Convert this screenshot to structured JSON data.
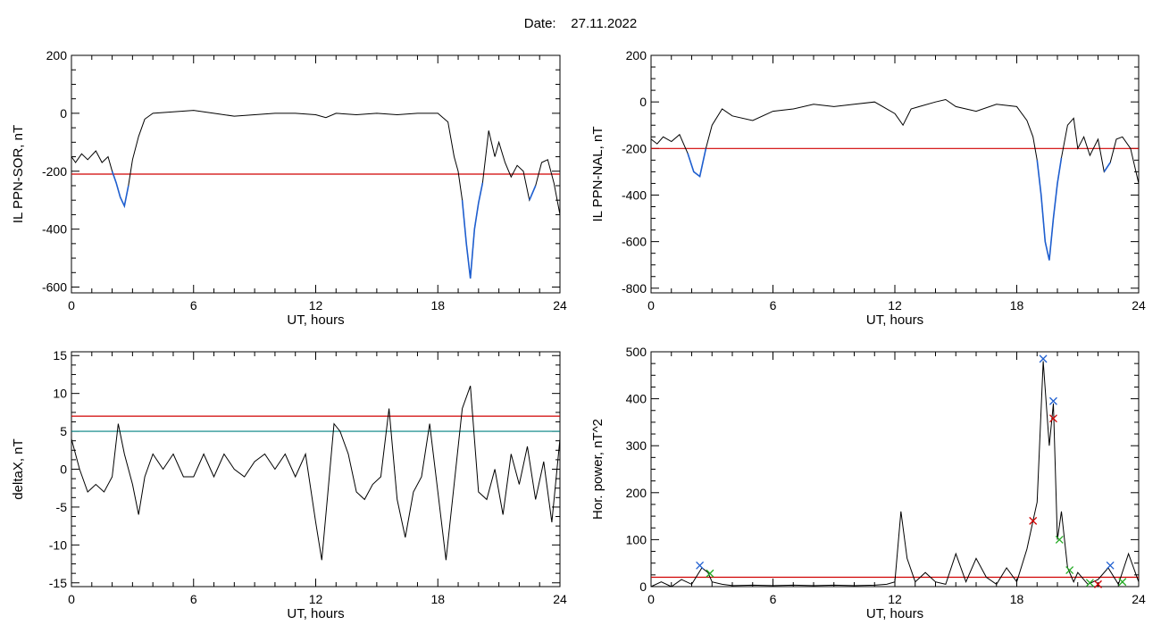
{
  "header": {
    "date_label": "Date:",
    "date_value": "27.11.2022"
  },
  "chart_data": [
    {
      "type": "line",
      "ylabel": "IL PPN-SOR, nT",
      "xlabel": "UT, hours",
      "xlim": [
        0,
        24
      ],
      "ylim": [
        -620,
        200
      ],
      "xticks": [
        0,
        6,
        12,
        18,
        24
      ],
      "yticks": [
        -600,
        -400,
        -200,
        0,
        200
      ],
      "threshold": {
        "value": -210,
        "color": "#d00000"
      },
      "series": [
        {
          "color": "#000000",
          "x": [
            0,
            0.2,
            0.5,
            0.8,
            1.2,
            1.5,
            1.8,
            2.0,
            2.2,
            2.4,
            2.6,
            2.8,
            3.0,
            3.3,
            3.6,
            4.0,
            5,
            6,
            7,
            8,
            9,
            10,
            11,
            12,
            12.5,
            13,
            14,
            15,
            16,
            17,
            18,
            18.5,
            18.8,
            19.0,
            19.2,
            19.4,
            19.6,
            19.8,
            20.0,
            20.2,
            20.5,
            20.8,
            21.0,
            21.3,
            21.6,
            21.9,
            22.2,
            22.5,
            22.8,
            23.1,
            23.4,
            23.7,
            24
          ],
          "y": [
            -150,
            -170,
            -140,
            -160,
            -130,
            -170,
            -150,
            -200,
            -240,
            -290,
            -320,
            -250,
            -160,
            -80,
            -20,
            0,
            5,
            10,
            0,
            -10,
            -5,
            0,
            0,
            -5,
            -15,
            0,
            -5,
            0,
            -5,
            0,
            0,
            -30,
            -150,
            -200,
            -300,
            -450,
            -570,
            -400,
            -310,
            -240,
            -60,
            -150,
            -100,
            -170,
            -220,
            -180,
            -200,
            -300,
            -250,
            -170,
            -160,
            -240,
            -350
          ]
        },
        {
          "color": "#1f5fd0",
          "x": [
            2.0,
            2.2,
            2.4,
            2.6,
            2.8,
            19.2,
            19.4,
            19.6,
            19.8,
            20.0,
            20.2,
            22.5,
            22.8
          ],
          "y": [
            -200,
            -240,
            -290,
            -320,
            -250,
            -300,
            -450,
            -570,
            -400,
            -310,
            -240,
            -300,
            -250
          ]
        }
      ]
    },
    {
      "type": "line",
      "ylabel": "IL PPN-NAL, nT",
      "xlabel": "UT, hours",
      "xlim": [
        0,
        24
      ],
      "ylim": [
        -820,
        200
      ],
      "xticks": [
        0,
        6,
        12,
        18,
        24
      ],
      "yticks": [
        -800,
        -600,
        -400,
        -200,
        0,
        200
      ],
      "threshold": {
        "value": -200,
        "color": "#d00000"
      },
      "series": [
        {
          "color": "#000000",
          "x": [
            0,
            0.3,
            0.6,
            1.0,
            1.4,
            1.8,
            2.1,
            2.4,
            2.7,
            3.0,
            3.5,
            4,
            5,
            6,
            7,
            8,
            9,
            10,
            11,
            12,
            12.4,
            12.8,
            13.2,
            14,
            14.5,
            15,
            16,
            17,
            18,
            18.5,
            18.8,
            19.0,
            19.2,
            19.4,
            19.6,
            19.8,
            20.0,
            20.2,
            20.5,
            20.8,
            21.0,
            21.3,
            21.6,
            22.0,
            22.3,
            22.6,
            22.9,
            23.2,
            23.6,
            24
          ],
          "y": [
            -160,
            -180,
            -150,
            -170,
            -140,
            -220,
            -300,
            -320,
            -200,
            -100,
            -30,
            -60,
            -80,
            -40,
            -30,
            -10,
            -20,
            -10,
            0,
            -50,
            -100,
            -30,
            -20,
            0,
            10,
            -20,
            -40,
            -10,
            -20,
            -80,
            -150,
            -250,
            -400,
            -600,
            -680,
            -500,
            -350,
            -240,
            -100,
            -70,
            -200,
            -150,
            -230,
            -160,
            -300,
            -260,
            -160,
            -150,
            -200,
            -350
          ]
        },
        {
          "color": "#1f5fd0",
          "x": [
            1.8,
            2.1,
            2.4,
            2.7,
            19.0,
            19.2,
            19.4,
            19.6,
            19.8,
            20.0,
            20.2,
            22.3,
            22.6
          ],
          "y": [
            -220,
            -300,
            -320,
            -200,
            -250,
            -400,
            -600,
            -680,
            -500,
            -350,
            -240,
            -300,
            -260
          ]
        }
      ]
    },
    {
      "type": "line",
      "ylabel": "deltaX, nT",
      "xlabel": "UT, hours",
      "xlim": [
        0,
        24
      ],
      "ylim": [
        -15.5,
        15.5
      ],
      "xticks": [
        0,
        6,
        12,
        18,
        24
      ],
      "yticks": [
        -15,
        -10,
        -5,
        0,
        5,
        10,
        15
      ],
      "thresholds": [
        {
          "value": 7,
          "color": "#d00000"
        },
        {
          "value": 5,
          "color": "#008080"
        }
      ],
      "series": [
        {
          "color": "#000000",
          "x": [
            0,
            0.4,
            0.8,
            1.2,
            1.6,
            2.0,
            2.3,
            2.6,
            3.0,
            3.3,
            3.6,
            4,
            4.5,
            5,
            5.5,
            6,
            6.5,
            7,
            7.5,
            8,
            8.5,
            9,
            9.5,
            10,
            10.5,
            11,
            11.5,
            12,
            12.3,
            12.6,
            12.9,
            13.2,
            13.6,
            14,
            14.4,
            14.8,
            15.2,
            15.6,
            16,
            16.4,
            16.8,
            17.2,
            17.6,
            18,
            18.4,
            18.8,
            19.2,
            19.6,
            20,
            20.4,
            20.8,
            21.2,
            21.6,
            22,
            22.4,
            22.8,
            23.2,
            23.6,
            24
          ],
          "y": [
            4,
            0,
            -3,
            -2,
            -3,
            -1,
            6,
            2,
            -2,
            -6,
            -1,
            2,
            0,
            2,
            -1,
            -1,
            2,
            -1,
            2,
            0,
            -1,
            1,
            2,
            0,
            2,
            -1,
            2,
            -7,
            -12,
            -3,
            6,
            5,
            2,
            -3,
            -4,
            -2,
            -1,
            8,
            -4,
            -9,
            -3,
            -1,
            6,
            -3,
            -12,
            -2,
            8,
            11,
            -3,
            -4,
            0,
            -6,
            2,
            -2,
            3,
            -4,
            1,
            -7,
            4
          ]
        }
      ]
    },
    {
      "type": "line",
      "ylabel": "Hor. power, nT^2",
      "xlabel": "UT, hours",
      "xlim": [
        0,
        24
      ],
      "ylim": [
        0,
        500
      ],
      "xticks": [
        0,
        6,
        12,
        18,
        24
      ],
      "yticks": [
        0,
        100,
        200,
        300,
        400,
        500
      ],
      "threshold": {
        "value": 20,
        "color": "#d00000"
      },
      "series": [
        {
          "color": "#000000",
          "x": [
            0,
            0.5,
            1,
            1.5,
            2,
            2.5,
            2.8,
            3,
            3.5,
            4,
            5,
            6,
            7,
            8,
            9,
            10,
            11,
            11.6,
            12,
            12.3,
            12.6,
            13,
            13.5,
            14,
            14.5,
            15,
            15.5,
            16,
            16.5,
            17,
            17.5,
            18,
            18.5,
            18.8,
            19.0,
            19.3,
            19.6,
            19.8,
            20.0,
            20.2,
            20.5,
            20.8,
            21,
            21.5,
            22,
            22.5,
            23,
            23.5,
            24
          ],
          "y": [
            0,
            10,
            0,
            15,
            5,
            40,
            30,
            10,
            5,
            2,
            3,
            2,
            3,
            2,
            3,
            2,
            3,
            5,
            10,
            160,
            60,
            10,
            30,
            10,
            5,
            70,
            10,
            60,
            20,
            5,
            40,
            10,
            80,
            140,
            180,
            480,
            300,
            390,
            100,
            160,
            40,
            10,
            30,
            5,
            15,
            40,
            5,
            70,
            10
          ]
        }
      ],
      "markers": [
        {
          "x": 2.4,
          "y": 45,
          "color": "#1f5fd0",
          "symbol": "x"
        },
        {
          "x": 2.9,
          "y": 28,
          "color": "#22aa22",
          "symbol": "x"
        },
        {
          "x": 18.8,
          "y": 140,
          "color": "#d00000",
          "symbol": "x"
        },
        {
          "x": 19.3,
          "y": 485,
          "color": "#1f5fd0",
          "symbol": "x"
        },
        {
          "x": 19.8,
          "y": 395,
          "color": "#1f5fd0",
          "symbol": "x"
        },
        {
          "x": 19.8,
          "y": 358,
          "color": "#d00000",
          "symbol": "x"
        },
        {
          "x": 20.1,
          "y": 100,
          "color": "#22aa22",
          "symbol": "x"
        },
        {
          "x": 20.6,
          "y": 35,
          "color": "#22aa22",
          "symbol": "x"
        },
        {
          "x": 21.6,
          "y": 8,
          "color": "#22aa22",
          "symbol": "x"
        },
        {
          "x": 22.0,
          "y": 5,
          "color": "#d00000",
          "symbol": "x"
        },
        {
          "x": 22.6,
          "y": 45,
          "color": "#1f5fd0",
          "symbol": "x"
        },
        {
          "x": 23.2,
          "y": 10,
          "color": "#22aa22",
          "symbol": "x"
        }
      ]
    }
  ]
}
